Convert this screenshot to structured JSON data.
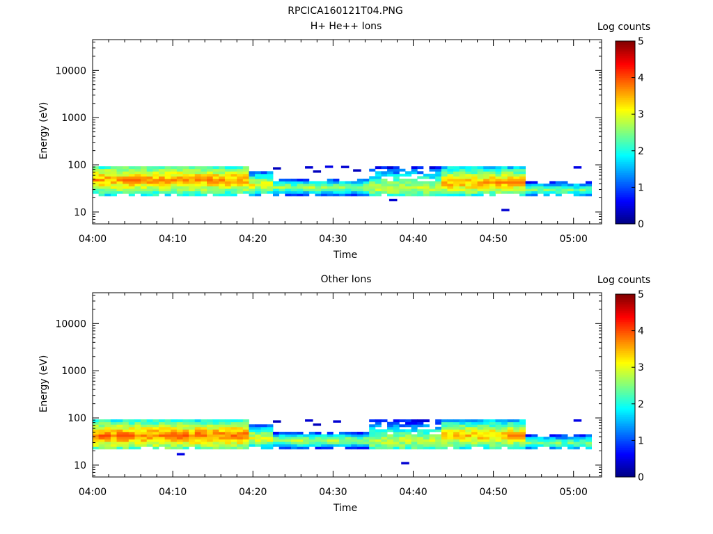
{
  "figure": {
    "title": "RPCICA160121T04.PNG"
  },
  "chart_data": [
    {
      "type": "heatmap",
      "title": "H+ He++ Ions",
      "xlabel": "Time",
      "ylabel": "Energy (eV)",
      "x_ticks": [
        "04:00",
        "04:10",
        "04:20",
        "04:30",
        "04:40",
        "04:50",
        "05:00"
      ],
      "x_range_minutes": [
        0,
        63.5
      ],
      "y_scale": "log",
      "y_ticks": [
        10,
        100,
        1000,
        10000
      ],
      "y_tick_labels": [
        "10",
        "100",
        "1000",
        "10000"
      ],
      "y_range": [
        5.6,
        45000
      ],
      "colorbar": {
        "label": "Log counts",
        "range": [
          0,
          5
        ],
        "ticks": [
          "0",
          "1",
          "2",
          "3",
          "4",
          "5"
        ]
      },
      "profile": {
        "start_min": 0,
        "end_min": 62.5,
        "step_min": 0.75,
        "energy_bins": [
          23.2,
          26.2,
          29.6,
          33.4,
          37.6,
          42.5,
          47.9,
          54.1,
          61.0,
          68.8,
          77.6,
          87.6
        ],
        "segments": [
          {
            "from": 0,
            "to": 19,
            "low_bin": 0,
            "high_bin": 11,
            "peak_bin": 6,
            "peak": 3.55,
            "edge": 1.9
          },
          {
            "from": 19,
            "to": 22.5,
            "low_bin": 0,
            "high_bin": 9,
            "peak_bin": 4,
            "peak": 3.0,
            "edge": 1.2
          },
          {
            "from": 22.5,
            "to": 34,
            "low_bin": 0,
            "high_bin": 6,
            "peak_bin": 3,
            "peak": 2.7,
            "edge": 1.0
          },
          {
            "from": 34,
            "to": 43,
            "low_bin": 0,
            "high_bin": 11,
            "peak_bin": 3,
            "peak": 2.8,
            "edge": 0.7
          },
          {
            "from": 43,
            "to": 53.5,
            "low_bin": 0,
            "high_bin": 11,
            "peak_bin": 5,
            "peak": 3.5,
            "edge": 1.7
          },
          {
            "from": 53.5,
            "to": 62.5,
            "low_bin": 0,
            "high_bin": 5,
            "peak_bin": 2,
            "peak": 2.4,
            "edge": 0.9
          }
        ],
        "hot_spots": [
          {
            "min": 4.2,
            "bin": 6,
            "value": 3.9
          },
          {
            "min": 52.5,
            "bin": 5,
            "value": 3.8
          }
        ],
        "sparse_points": [
          {
            "min": 22.5,
            "energy": 84,
            "value": 0.3
          },
          {
            "min": 26.5,
            "energy": 88,
            "value": 0.4
          },
          {
            "min": 27.5,
            "energy": 72,
            "value": 0.3
          },
          {
            "min": 29,
            "energy": 91,
            "value": 0.5
          },
          {
            "min": 31,
            "energy": 90,
            "value": 0.4
          },
          {
            "min": 32.5,
            "energy": 76,
            "value": 0.3
          },
          {
            "min": 37,
            "energy": 18,
            "value": 0.4
          },
          {
            "min": 51,
            "energy": 11,
            "value": 0.4
          },
          {
            "min": 60,
            "energy": 88,
            "value": 0.5
          }
        ]
      }
    },
    {
      "type": "heatmap",
      "title": "Other Ions",
      "xlabel": "Time",
      "ylabel": "Energy (eV)",
      "x_ticks": [
        "04:00",
        "04:10",
        "04:20",
        "04:30",
        "04:40",
        "04:50",
        "05:00"
      ],
      "x_range_minutes": [
        0,
        63.5
      ],
      "y_scale": "log",
      "y_ticks": [
        10,
        100,
        1000,
        10000
      ],
      "y_tick_labels": [
        "10",
        "100",
        "1000",
        "10000"
      ],
      "y_range": [
        5.6,
        45000
      ],
      "colorbar": {
        "label": "Log counts",
        "range": [
          0,
          5
        ],
        "ticks": [
          "0",
          "1",
          "2",
          "3",
          "4",
          "5"
        ]
      },
      "profile": {
        "start_min": 0,
        "end_min": 62.5,
        "step_min": 0.75,
        "energy_bins": [
          23.2,
          26.2,
          29.6,
          33.4,
          37.6,
          42.5,
          47.9,
          54.1,
          61.0,
          68.8,
          77.6,
          87.6
        ],
        "segments": [
          {
            "from": 0,
            "to": 19,
            "low_bin": 0,
            "high_bin": 11,
            "peak_bin": 5,
            "peak": 3.75,
            "edge": 2.0
          },
          {
            "from": 19,
            "to": 22.5,
            "low_bin": 0,
            "high_bin": 9,
            "peak_bin": 4,
            "peak": 3.1,
            "edge": 1.2
          },
          {
            "from": 22.5,
            "to": 34,
            "low_bin": 0,
            "high_bin": 6,
            "peak_bin": 3,
            "peak": 2.7,
            "edge": 1.0
          },
          {
            "from": 34,
            "to": 43,
            "low_bin": 0,
            "high_bin": 11,
            "peak_bin": 3,
            "peak": 2.8,
            "edge": 0.6
          },
          {
            "from": 43,
            "to": 53.5,
            "low_bin": 0,
            "high_bin": 11,
            "peak_bin": 5,
            "peak": 3.4,
            "edge": 1.6
          },
          {
            "from": 53.5,
            "to": 62.5,
            "low_bin": 0,
            "high_bin": 5,
            "peak_bin": 2,
            "peak": 2.4,
            "edge": 0.9
          }
        ],
        "hot_spots": [
          {
            "min": 3.5,
            "bin": 5,
            "value": 4.0
          },
          {
            "min": 9.5,
            "bin": 5,
            "value": 3.9
          },
          {
            "min": 52.5,
            "bin": 5,
            "value": 3.8
          }
        ],
        "sparse_points": [
          {
            "min": 10.5,
            "energy": 17,
            "value": 0.5
          },
          {
            "min": 22.5,
            "energy": 84,
            "value": 0.3
          },
          {
            "min": 26.5,
            "energy": 88,
            "value": 0.4
          },
          {
            "min": 27.5,
            "energy": 72,
            "value": 0.3
          },
          {
            "min": 30,
            "energy": 84,
            "value": 0.4
          },
          {
            "min": 38.5,
            "energy": 11,
            "value": 0.4
          },
          {
            "min": 60,
            "energy": 88,
            "value": 0.5
          }
        ]
      }
    }
  ]
}
